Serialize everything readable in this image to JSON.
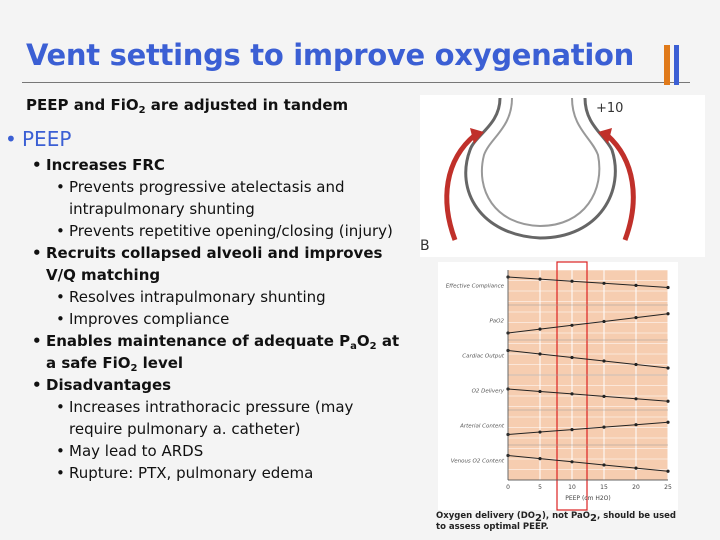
{
  "title": "Vent settings to improve oxygenation",
  "subtitle": [
    "PEEP and FiO",
    "2",
    " are adjusted in tandem"
  ],
  "bullets": [
    {
      "level": 0,
      "parts": [
        "PEEP"
      ]
    },
    {
      "level": 1,
      "parts": [
        "Increases FRC"
      ]
    },
    {
      "level": 2,
      "parts": [
        "Prevents progressive atelectasis and intrapulmonary shunting"
      ]
    },
    {
      "level": 2,
      "parts": [
        "Prevents repetitive opening/closing (injury)"
      ]
    },
    {
      "level": 1,
      "parts": [
        "Recruits collapsed alveoli and improves V/Q matching"
      ]
    },
    {
      "level": 2,
      "parts": [
        "Resolves intrapulmonary shunting"
      ]
    },
    {
      "level": 2,
      "parts": [
        "Improves compliance"
      ]
    },
    {
      "level": 1,
      "parts": [
        "Enables maintenance of adequate P",
        "a",
        "O",
        "2",
        " at a safe FiO",
        "2",
        " level"
      ]
    },
    {
      "level": 1,
      "parts": [
        "Disadvantages"
      ]
    },
    {
      "level": 2,
      "parts": [
        "Increases intrathoracic pressure (may require pulmonary a. catheter)"
      ]
    },
    {
      "level": 2,
      "parts": [
        "May lead to ARDS"
      ]
    },
    {
      "level": 2,
      "parts": [
        "Rupture: PTX, pulmonary edema"
      ]
    }
  ],
  "figure": {
    "pressure_label": "+10",
    "panel_label": "B",
    "graph_labels": [
      "Effective Compliance",
      "PaO2",
      "Cardiac Output",
      "O2 Delivery",
      "Arterial Content",
      "Venous O2 Content"
    ],
    "xticks": [
      0,
      5,
      10,
      15,
      20,
      25
    ],
    "xlabel": "PEEP (cm H2O)"
  },
  "caption": [
    "Oxygen delivery (DO",
    "2",
    "), not PaO",
    "2",
    ", should be used to assess optimal PEEP."
  ]
}
